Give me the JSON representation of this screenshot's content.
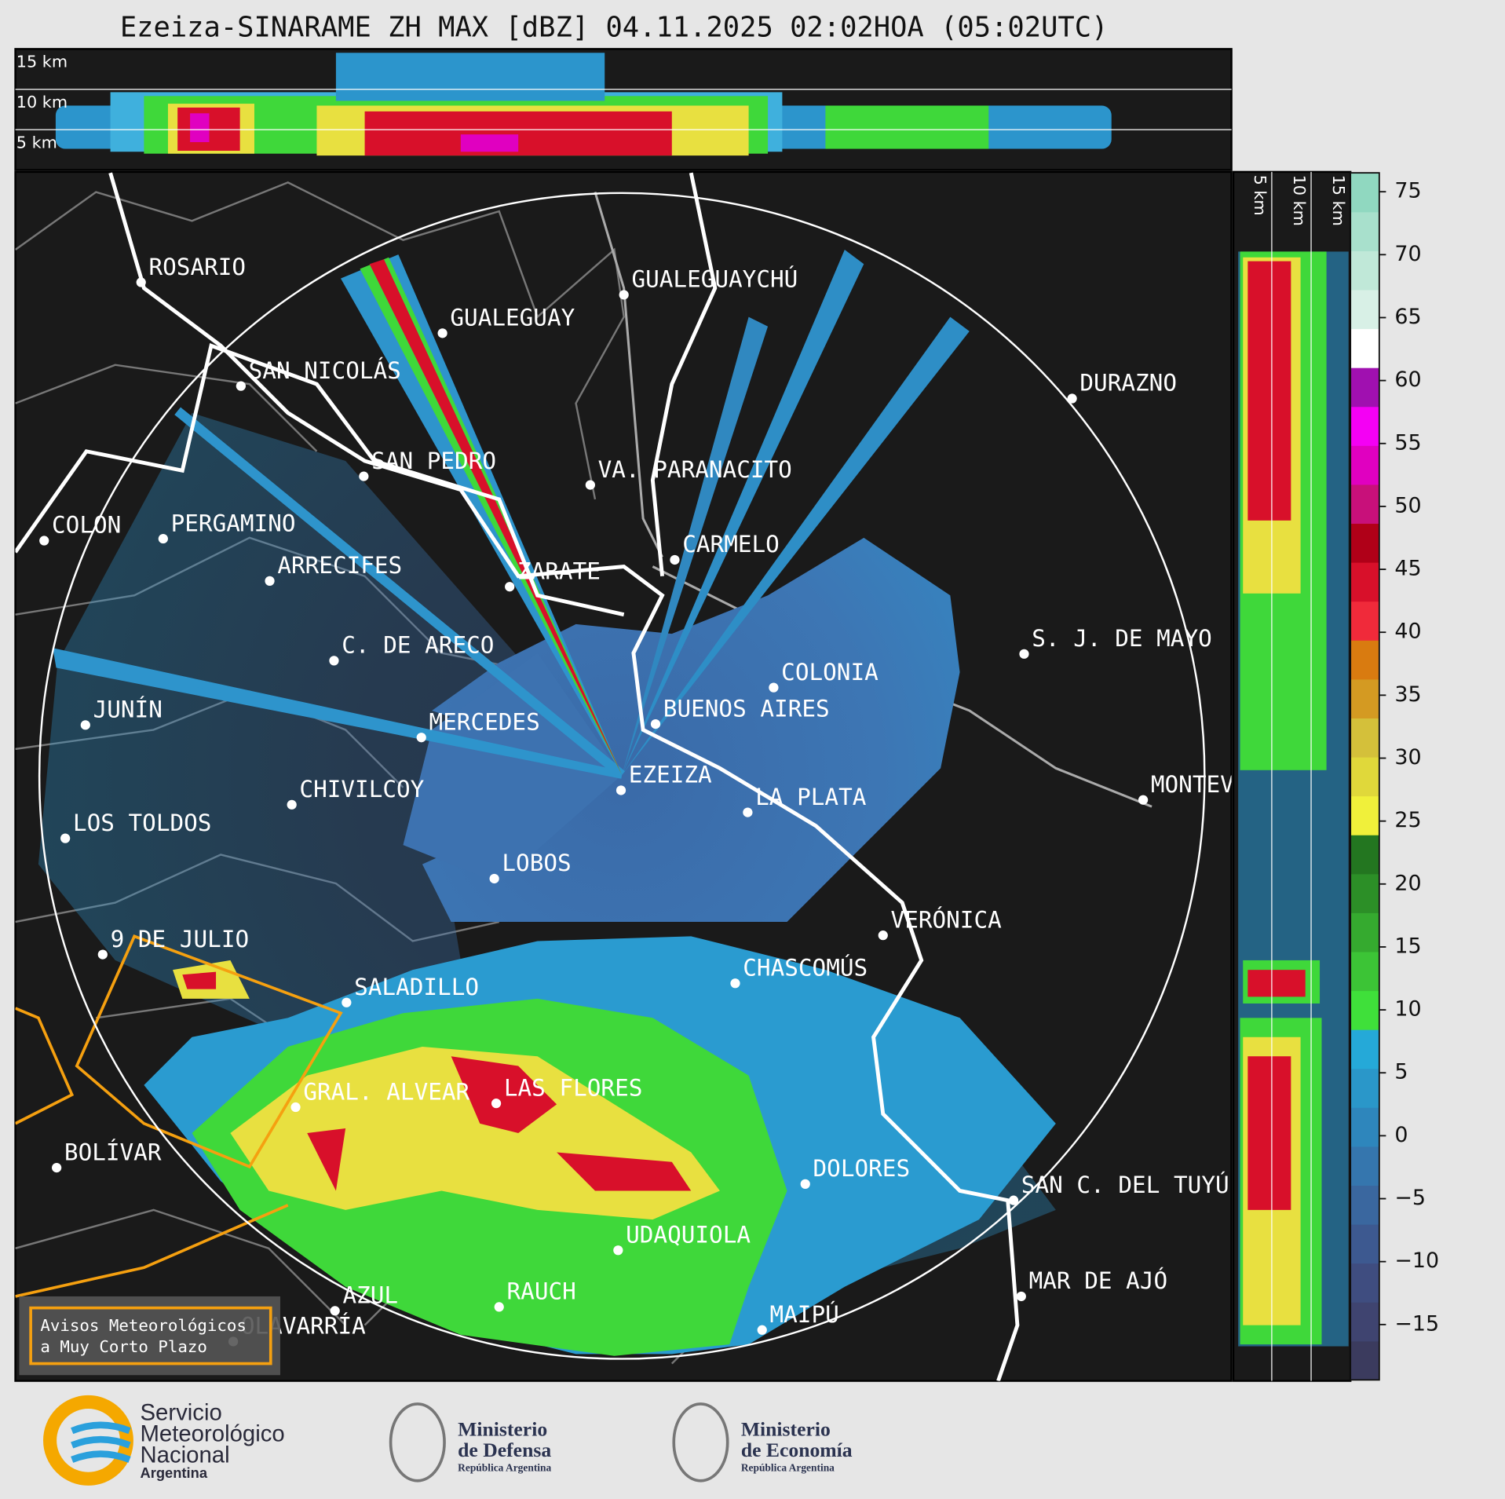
{
  "header": {
    "title": "Ezeiza-SINARAME ZH MAX [dBZ] 04.11.2025 02:02HOA (05:02UTC)"
  },
  "top_panel": {
    "height_labels": [
      "15 km",
      "10 km",
      "5 km"
    ]
  },
  "side_panel": {
    "height_labels": [
      "5 km",
      "10 km",
      "15 km"
    ]
  },
  "colorbar": {
    "lim": [
      -19.4,
      76.5
    ],
    "ticks": [
      75,
      70,
      65,
      60,
      55,
      50,
      45,
      40,
      35,
      30,
      25,
      20,
      15,
      10,
      5,
      0,
      {
        "value": -5,
        "label": "−5"
      },
      {
        "value": -10,
        "label": "−10"
      },
      {
        "value": -15,
        "label": "−15"
      }
    ],
    "colors": [
      "#3b3b5e",
      "#3f4470",
      "#3f4d80",
      "#3d5990",
      "#3a679f",
      "#3576ae",
      "#2e86bc",
      "#2a97c9",
      "#25a9d8",
      "#3fe03a",
      "#3cc436",
      "#35aa2f",
      "#2c8f27",
      "#237620",
      "#f0f03a",
      "#e0d83a",
      "#d4c03a",
      "#d49a22",
      "#d97b10",
      "#f02a3a",
      "#d8102a",
      "#b00018",
      "#c8107a",
      "#e000c0",
      "#f400f4",
      "#a010b0",
      "#ffffff",
      "#d8f0e6",
      "#c0e8d8",
      "#a8e0cc",
      "#90d8c0"
    ]
  },
  "map": {
    "cities": [
      "ROSARIO",
      "GUALEGUAYCHÚ",
      "GUALEGUAY",
      "SAN NICOLÁS",
      "DURAZNO",
      "SAN PEDRO",
      "VA. PARANACITO",
      "COLON",
      "PERGAMINO",
      "CARMELO",
      "ARRECIFES",
      "ZARATE",
      "S. J. DE MAYO",
      "C. DE ARECO",
      "COLONIA",
      "BUENOS AIRES",
      "JUNÍN",
      "MERCEDES",
      "EZEIZA",
      "MONTEVIDEO",
      "CHIVILCOY",
      "LA PLATA",
      "LOS TOLDOS",
      "LOBOS",
      "VERÓNICA",
      "9 DE JULIO",
      "CHASCOMÚS",
      "SALADILLO",
      "GRAL. ALVEAR",
      "LAS FLORES",
      "BOLÍVAR",
      "DOLORES",
      "SAN C. DEL TUYÚ",
      "UDAQUIOLA",
      "MAR DE AJÓ",
      "RAUCH",
      "AZUL",
      "MAIPÚ",
      "OLAVARRÍA"
    ],
    "legend": [
      "Avisos Meteorológicos",
      "a Muy Corto Plazo"
    ]
  },
  "footer": {
    "smn": [
      "Servicio",
      "Meteorológico",
      "Nacional",
      "Argentina"
    ],
    "defensa": [
      "Ministerio",
      "de Defensa",
      "República Argentina"
    ],
    "economia": [
      "Ministerio",
      "de Economía",
      "República Argentina"
    ]
  }
}
